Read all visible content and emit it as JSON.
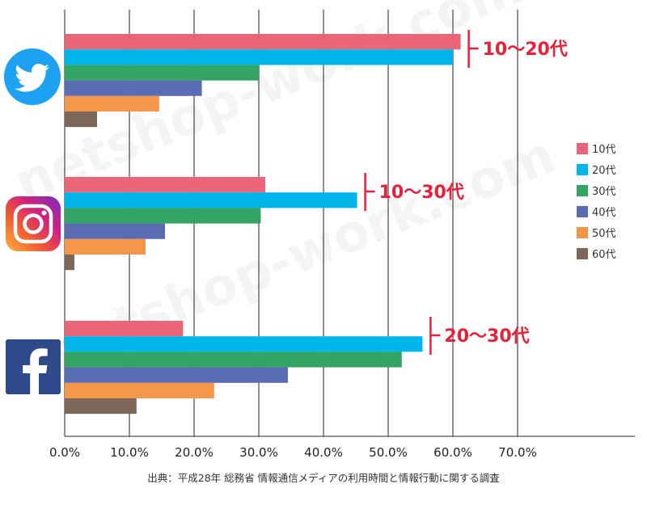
{
  "chart_data": {
    "type": "bar",
    "orientation": "horizontal",
    "categories": [
      "twitter",
      "instagram",
      "facebook"
    ],
    "series": [
      {
        "name": "10代",
        "color": "#ea6678",
        "values": [
          61.2,
          31.0,
          18.3
        ]
      },
      {
        "name": "20代",
        "color": "#00b6eb",
        "values": [
          60.0,
          45.2,
          55.3
        ]
      },
      {
        "name": "30代",
        "color": "#33a464",
        "values": [
          30.0,
          30.3,
          52.1
        ]
      },
      {
        "name": "40代",
        "color": "#5a6cb4",
        "values": [
          21.2,
          15.5,
          34.5
        ]
      },
      {
        "name": "50代",
        "color": "#f5974b",
        "values": [
          14.6,
          12.5,
          23.1
        ]
      },
      {
        "name": "60代",
        "color": "#7d6758",
        "values": [
          5.0,
          1.5,
          11.1
        ]
      }
    ],
    "xlim": [
      0,
      70
    ],
    "x_ticks": [
      "0.0%",
      "10.0%",
      "20.0%",
      "30.0%",
      "40.0%",
      "50.0%",
      "60.0%",
      "70.0%"
    ],
    "grid": "vertical",
    "legend_position": "right",
    "annotations": [
      "10〜20代",
      "10〜30代",
      "20〜30代"
    ],
    "annotation_values": [
      61.2,
      45.2,
      55.3
    ]
  },
  "icons": [
    "twitter-icon",
    "instagram-icon",
    "facebook-icon"
  ],
  "icon_colors": {
    "twitter": "#1da1f2",
    "facebook": "#2f4a8a"
  },
  "source": "出典：平成28年 総務省 情報通信メディアの利用時間と情報行動に関する調査",
  "watermark": "netshop-work.com"
}
